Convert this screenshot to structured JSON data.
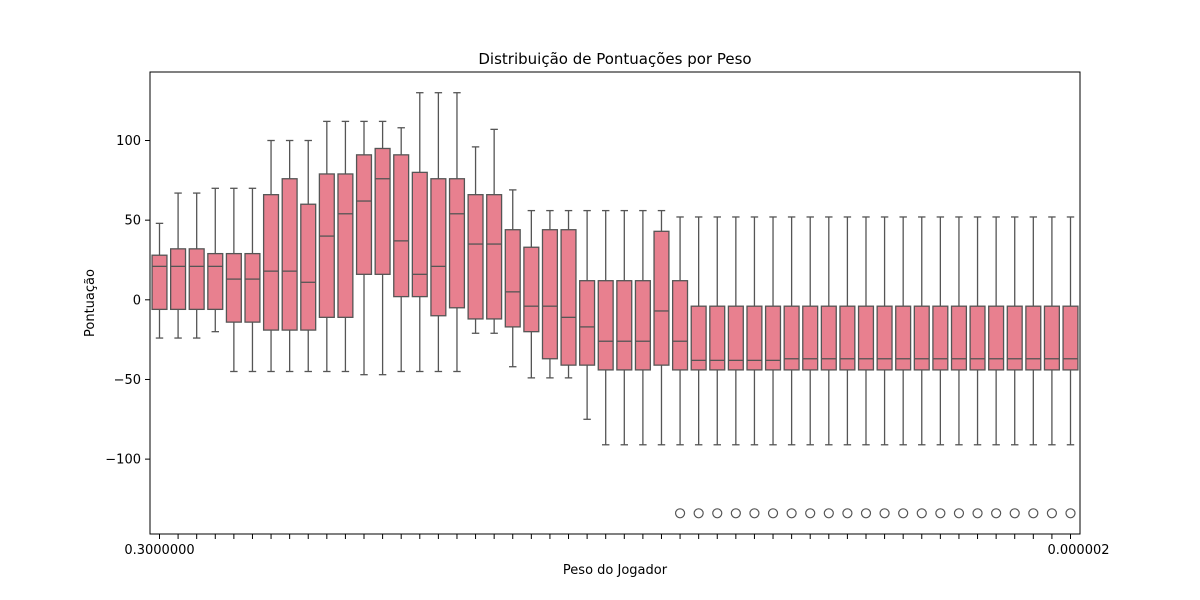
{
  "chart_data": {
    "type": "box",
    "title": "Distribuição de Pontuações por Peso",
    "xlabel": "Peso do Jogador",
    "ylabel": "Pontuação",
    "ylim": [
      -147,
      143
    ],
    "y_ticks": [
      -100,
      -50,
      0,
      50,
      100
    ],
    "y_tick_labels": [
      "−100",
      "−50",
      "0",
      "50",
      "100"
    ],
    "x_tick_labels_visible": [
      "0.3000000",
      "0.000002"
    ],
    "grid": false,
    "box_color": "#e8808f",
    "edge_color": "#555555",
    "outlier_value": -134,
    "categories_count": 50,
    "boxes": [
      {
        "q1": -6,
        "median": 21,
        "q3": 28,
        "lo": -24,
        "hi": 48
      },
      {
        "q1": -6,
        "median": 21,
        "q3": 32,
        "lo": -24,
        "hi": 67
      },
      {
        "q1": -6,
        "median": 21,
        "q3": 32,
        "lo": -24,
        "hi": 67
      },
      {
        "q1": -6,
        "median": 21,
        "q3": 29,
        "lo": -20,
        "hi": 70
      },
      {
        "q1": -14,
        "median": 13,
        "q3": 29,
        "lo": -45,
        "hi": 70
      },
      {
        "q1": -14,
        "median": 13,
        "q3": 29,
        "lo": -45,
        "hi": 70
      },
      {
        "q1": -19,
        "median": 18,
        "q3": 66,
        "lo": -45,
        "hi": 100
      },
      {
        "q1": -19,
        "median": 18,
        "q3": 76,
        "lo": -45,
        "hi": 100
      },
      {
        "q1": -19,
        "median": 11,
        "q3": 60,
        "lo": -45,
        "hi": 100
      },
      {
        "q1": -11,
        "median": 40,
        "q3": 79,
        "lo": -45,
        "hi": 112
      },
      {
        "q1": -11,
        "median": 54,
        "q3": 79,
        "lo": -45,
        "hi": 112
      },
      {
        "q1": 16,
        "median": 62,
        "q3": 91,
        "lo": -47,
        "hi": 112
      },
      {
        "q1": 16,
        "median": 76,
        "q3": 95,
        "lo": -47,
        "hi": 112
      },
      {
        "q1": 2,
        "median": 37,
        "q3": 91,
        "lo": -45,
        "hi": 108
      },
      {
        "q1": 2,
        "median": 16,
        "q3": 80,
        "lo": -45,
        "hi": 130
      },
      {
        "q1": -10,
        "median": 21,
        "q3": 76,
        "lo": -45,
        "hi": 130
      },
      {
        "q1": -5,
        "median": 54,
        "q3": 76,
        "lo": -45,
        "hi": 130
      },
      {
        "q1": -12,
        "median": 35,
        "q3": 66,
        "lo": -21,
        "hi": 96
      },
      {
        "q1": -12,
        "median": 35,
        "q3": 66,
        "lo": -21,
        "hi": 107
      },
      {
        "q1": -17,
        "median": 5,
        "q3": 44,
        "lo": -42,
        "hi": 69
      },
      {
        "q1": -20,
        "median": -4,
        "q3": 33,
        "lo": -49,
        "hi": 56
      },
      {
        "q1": -37,
        "median": -4,
        "q3": 44,
        "lo": -49,
        "hi": 56
      },
      {
        "q1": -41,
        "median": -11,
        "q3": 44,
        "lo": -49,
        "hi": 56
      },
      {
        "q1": -41,
        "median": -17,
        "q3": 12,
        "lo": -75,
        "hi": 56
      },
      {
        "q1": -44,
        "median": -26,
        "q3": 12,
        "lo": -91,
        "hi": 56
      },
      {
        "q1": -44,
        "median": -26,
        "q3": 12,
        "lo": -91,
        "hi": 56
      },
      {
        "q1": -44,
        "median": -26,
        "q3": 12,
        "lo": -91,
        "hi": 56
      },
      {
        "q1": -41,
        "median": -7,
        "q3": 43,
        "lo": -91,
        "hi": 56
      },
      {
        "q1": -44,
        "median": -26,
        "q3": 12,
        "lo": -91,
        "hi": 52,
        "outlier": true
      },
      {
        "q1": -44,
        "median": -38,
        "q3": -4,
        "lo": -91,
        "hi": 52,
        "outlier": true
      },
      {
        "q1": -44,
        "median": -38,
        "q3": -4,
        "lo": -91,
        "hi": 52,
        "outlier": true
      },
      {
        "q1": -44,
        "median": -38,
        "q3": -4,
        "lo": -91,
        "hi": 52,
        "outlier": true
      },
      {
        "q1": -44,
        "median": -38,
        "q3": -4,
        "lo": -91,
        "hi": 52,
        "outlier": true
      },
      {
        "q1": -44,
        "median": -38,
        "q3": -4,
        "lo": -91,
        "hi": 52,
        "outlier": true
      },
      {
        "q1": -44,
        "median": -37,
        "q3": -4,
        "lo": -91,
        "hi": 52,
        "outlier": true
      },
      {
        "q1": -44,
        "median": -37,
        "q3": -4,
        "lo": -91,
        "hi": 52,
        "outlier": true
      },
      {
        "q1": -44,
        "median": -37,
        "q3": -4,
        "lo": -91,
        "hi": 52,
        "outlier": true
      },
      {
        "q1": -44,
        "median": -37,
        "q3": -4,
        "lo": -91,
        "hi": 52,
        "outlier": true
      },
      {
        "q1": -44,
        "median": -37,
        "q3": -4,
        "lo": -91,
        "hi": 52,
        "outlier": true
      },
      {
        "q1": -44,
        "median": -37,
        "q3": -4,
        "lo": -91,
        "hi": 52,
        "outlier": true
      },
      {
        "q1": -44,
        "median": -37,
        "q3": -4,
        "lo": -91,
        "hi": 52,
        "outlier": true
      },
      {
        "q1": -44,
        "median": -37,
        "q3": -4,
        "lo": -91,
        "hi": 52,
        "outlier": true
      },
      {
        "q1": -44,
        "median": -37,
        "q3": -4,
        "lo": -91,
        "hi": 52,
        "outlier": true
      },
      {
        "q1": -44,
        "median": -37,
        "q3": -4,
        "lo": -91,
        "hi": 52,
        "outlier": true
      },
      {
        "q1": -44,
        "median": -37,
        "q3": -4,
        "lo": -91,
        "hi": 52,
        "outlier": true
      },
      {
        "q1": -44,
        "median": -37,
        "q3": -4,
        "lo": -91,
        "hi": 52,
        "outlier": true
      },
      {
        "q1": -44,
        "median": -37,
        "q3": -4,
        "lo": -91,
        "hi": 52,
        "outlier": true
      },
      {
        "q1": -44,
        "median": -37,
        "q3": -4,
        "lo": -91,
        "hi": 52,
        "outlier": true
      },
      {
        "q1": -44,
        "median": -37,
        "q3": -4,
        "lo": -91,
        "hi": 52,
        "outlier": true
      },
      {
        "q1": -44,
        "median": -37,
        "q3": -4,
        "lo": -91,
        "hi": 52,
        "outlier": true
      }
    ]
  }
}
